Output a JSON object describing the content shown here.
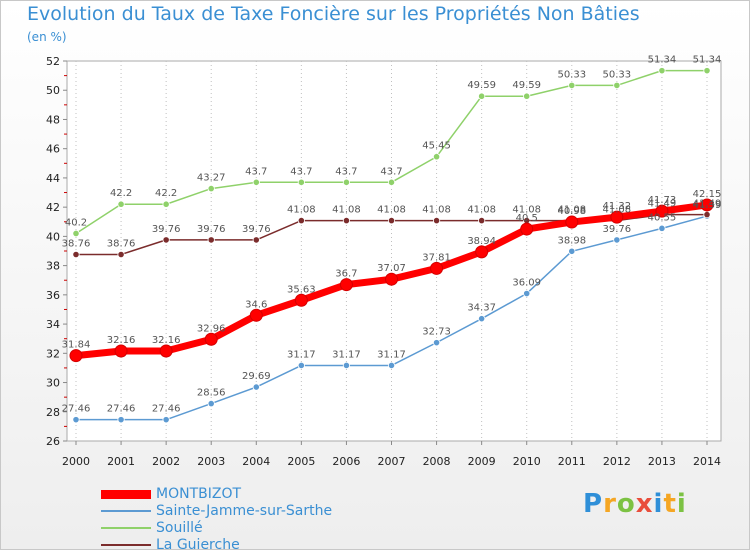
{
  "chart_data": {
    "type": "line",
    "title": "Evolution du Taux de Taxe Foncière sur les Propriétés Non Bâties",
    "ylabel": "(en %)",
    "xlabel": "",
    "x": [
      "2000",
      "2001",
      "2002",
      "2003",
      "2004",
      "2005",
      "2006",
      "2007",
      "2008",
      "2009",
      "2010",
      "2011",
      "2012",
      "2013",
      "2014"
    ],
    "ylim": [
      26,
      52
    ],
    "yticks": [
      26,
      28,
      30,
      32,
      34,
      36,
      38,
      40,
      42,
      44,
      46,
      48,
      50,
      52
    ],
    "grid": "vertical dotted",
    "legend": "bottom-left",
    "series": [
      {
        "name": "MONTBIZOT",
        "color": "#ff0000",
        "values": [
          31.84,
          32.16,
          32.16,
          32.96,
          34.6,
          35.63,
          36.7,
          37.07,
          37.81,
          38.94,
          40.5,
          40.98,
          41.32,
          41.73,
          42.15
        ],
        "labels": [
          "31.84",
          "32.16",
          "32.16",
          "32.96",
          "34.6",
          "35.63",
          "36.7",
          "37.07",
          "37.81",
          "38.94",
          "40.5",
          "40.98",
          "41.32",
          "41.73",
          "42.15"
        ]
      },
      {
        "name": "Sainte-Jamme-sur-Sarthe",
        "color": "#5c9ad2",
        "values": [
          27.46,
          27.46,
          27.46,
          28.56,
          29.69,
          31.17,
          31.17,
          31.17,
          32.73,
          34.37,
          36.09,
          38.98,
          39.76,
          40.55,
          41.39
        ],
        "labels": [
          "27.46",
          "27.46",
          "27.46",
          "28.56",
          "29.69",
          "31.17",
          "31.17",
          "31.17",
          "32.73",
          "34.37",
          "36.09",
          "38.98",
          "39.76",
          "40.55",
          "41.39"
        ]
      },
      {
        "name": "Souillé",
        "color": "#8fd16a",
        "values": [
          40.2,
          42.2,
          42.2,
          43.27,
          43.7,
          43.7,
          43.7,
          43.7,
          45.45,
          49.59,
          49.59,
          50.33,
          50.33,
          51.34,
          51.34
        ],
        "labels": [
          "40.2",
          "42.2",
          "42.2",
          "43.27",
          "43.7",
          "43.7",
          "43.7",
          "43.7",
          "45.45",
          "49.59",
          "49.59",
          "50.33",
          "50.33",
          "51.34",
          "51.34"
        ]
      },
      {
        "name": "La Guierche",
        "color": "#7b2c2c",
        "values": [
          38.76,
          38.76,
          39.76,
          39.76,
          39.76,
          41.08,
          41.08,
          41.08,
          41.08,
          41.08,
          41.08,
          41.08,
          41.08,
          41.49,
          41.49
        ],
        "labels": [
          "38.76",
          "38.76",
          "39.76",
          "39.76",
          "39.76",
          "41.08",
          "41.08",
          "41.08",
          "41.08",
          "41.08",
          "41.08",
          "41.08",
          "41.08",
          "41.49",
          "41.49"
        ]
      }
    ]
  },
  "legend_items": [
    {
      "label": "MONTBIZOT",
      "color": "#ff0000"
    },
    {
      "label": "Sainte-Jamme-sur-Sarthe",
      "color": "#5c9ad2"
    },
    {
      "label": "Souillé",
      "color": "#8fd16a"
    },
    {
      "label": "La Guierche",
      "color": "#7b2c2c"
    }
  ],
  "logo": {
    "text": "Proxiti",
    "letters": [
      {
        "ch": "P",
        "color": "#2f8fd8"
      },
      {
        "ch": "r",
        "color": "#f5a623"
      },
      {
        "ch": "o",
        "color": "#7cc243"
      },
      {
        "ch": "x",
        "color": "#e94e3c"
      },
      {
        "ch": "i",
        "color": "#2f8fd8"
      },
      {
        "ch": "t",
        "color": "#f5a623"
      },
      {
        "ch": "i",
        "color": "#7cc243"
      }
    ]
  }
}
